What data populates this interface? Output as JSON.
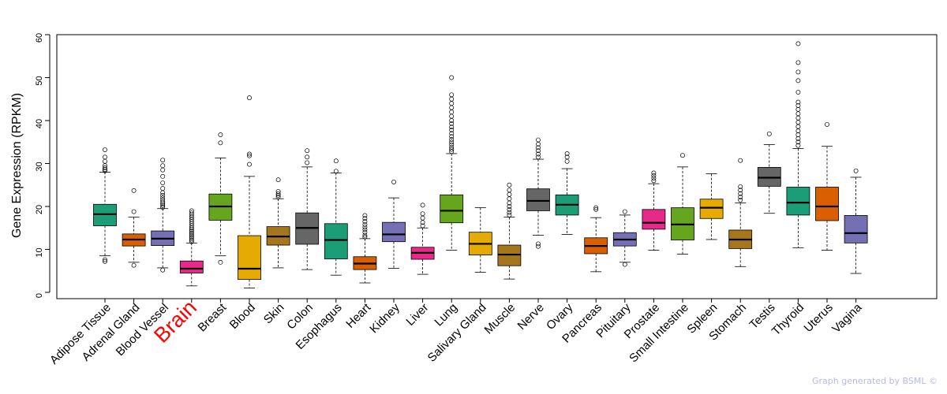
{
  "chart_data": {
    "type": "boxplot",
    "title": "",
    "ylabel": "Gene Expression (RPKM)",
    "xlabel": "",
    "ylim": [
      0,
      60
    ],
    "yticks": [
      0,
      10,
      20,
      30,
      40,
      50,
      60
    ],
    "highlight": "Brain",
    "highlight_color": "#ff0000",
    "tissues": [
      {
        "name": "Adipose Tissue",
        "color": "#1b9e77",
        "whisker_low": 8.5,
        "q1": 15.5,
        "median": 18.2,
        "q3": 20.5,
        "whisker_high": 28.0,
        "outliers": [
          7.2,
          7.6,
          28.3,
          28.6,
          29.0,
          29.5,
          30.5,
          31.5,
          33.2
        ]
      },
      {
        "name": "Adrenal Gland",
        "color": "#d95f02",
        "whisker_low": 7.0,
        "q1": 10.8,
        "median": 12.3,
        "q3": 13.6,
        "whisker_high": 17.5,
        "outliers": [
          6.3,
          18.8,
          23.7
        ]
      },
      {
        "name": "Blood Vessel",
        "color": "#7570b3",
        "whisker_low": 5.7,
        "q1": 10.9,
        "median": 12.5,
        "q3": 14.3,
        "whisker_high": 19.5,
        "outliers": [
          5.2,
          19.8,
          20.2,
          20.6,
          21.0,
          21.5,
          22.0,
          22.6,
          23.2,
          24.2,
          25.5,
          27.0,
          28.5,
          29.5,
          30.8
        ]
      },
      {
        "name": "Brain",
        "color": "#e7298a",
        "whisker_low": 1.5,
        "q1": 4.5,
        "median": 5.5,
        "q3": 7.3,
        "whisker_high": 11.5,
        "outliers": [
          11.8,
          12.2,
          12.6,
          13.0,
          13.4,
          13.8,
          14.2,
          14.6,
          15.0,
          15.5,
          16.0,
          16.5,
          17.0,
          17.5,
          18.0,
          18.5,
          19.0
        ]
      },
      {
        "name": "Breast",
        "color": "#66a61e",
        "whisker_low": 8.5,
        "q1": 16.8,
        "median": 20.0,
        "q3": 22.9,
        "whisker_high": 31.3,
        "outliers": [
          7.0,
          34.8,
          36.7
        ]
      },
      {
        "name": "Blood",
        "color": "#e6ab02",
        "whisker_low": 1.0,
        "q1": 3.0,
        "median": 5.5,
        "q3": 13.2,
        "whisker_high": 27.0,
        "outliers": [
          29.8,
          31.8,
          32.2,
          45.3
        ]
      },
      {
        "name": "Skin",
        "color": "#a6761d",
        "whisker_low": 5.7,
        "q1": 11.0,
        "median": 13.0,
        "q3": 15.3,
        "whisker_high": 21.8,
        "outliers": [
          22.2,
          22.6,
          23.0,
          23.5,
          26.2
        ]
      },
      {
        "name": "Colon",
        "color": "#666666",
        "whisker_low": 5.3,
        "q1": 11.2,
        "median": 15.0,
        "q3": 18.5,
        "whisker_high": 29.2,
        "outliers": [
          30.2,
          31.5,
          33.0
        ]
      },
      {
        "name": "Esophagus",
        "color": "#1b9e77",
        "whisker_low": 4.0,
        "q1": 7.8,
        "median": 12.2,
        "q3": 16.0,
        "whisker_high": 27.8,
        "outliers": [
          28.2,
          30.6
        ]
      },
      {
        "name": "Heart",
        "color": "#d95f02",
        "whisker_low": 2.2,
        "q1": 5.3,
        "median": 6.7,
        "q3": 8.3,
        "whisker_high": 12.5,
        "outliers": [
          12.9,
          13.3,
          14.0,
          14.6,
          15.2,
          15.8,
          16.5,
          17.2,
          17.9
        ]
      },
      {
        "name": "Kidney",
        "color": "#7570b3",
        "whisker_low": 5.6,
        "q1": 11.8,
        "median": 13.5,
        "q3": 16.3,
        "whisker_high": 22.0,
        "outliers": [
          25.7
        ]
      },
      {
        "name": "Liver",
        "color": "#e7298a",
        "whisker_low": 4.2,
        "q1": 7.7,
        "median": 9.2,
        "q3": 10.5,
        "whisker_high": 15.0,
        "outliers": [
          15.5,
          16.3,
          17.3,
          18.3,
          20.3
        ]
      },
      {
        "name": "Lung",
        "color": "#66a61e",
        "whisker_low": 9.8,
        "q1": 16.2,
        "median": 19.0,
        "q3": 22.7,
        "whisker_high": 32.3,
        "outliers": [
          32.8,
          33.3,
          33.8,
          34.4,
          35.0,
          35.6,
          36.3,
          37.0,
          37.8,
          38.5,
          39.3,
          40.0,
          41.0,
          42.0,
          43.0,
          44.0,
          45.0,
          46.0,
          50.0
        ]
      },
      {
        "name": "Salivary Gland",
        "color": "#e6ab02",
        "whisker_low": 4.7,
        "q1": 8.7,
        "median": 11.3,
        "q3": 14.0,
        "whisker_high": 19.7,
        "outliers": []
      },
      {
        "name": "Muscle",
        "color": "#a6761d",
        "whisker_low": 3.1,
        "q1": 6.2,
        "median": 8.8,
        "q3": 11.0,
        "whisker_high": 17.5,
        "outliers": [
          18.0,
          18.6,
          19.3,
          20.0,
          20.8,
          21.8,
          22.8,
          23.8,
          25.0
        ]
      },
      {
        "name": "Nerve",
        "color": "#666666",
        "whisker_low": 13.3,
        "q1": 19.0,
        "median": 21.3,
        "q3": 24.1,
        "whisker_high": 31.0,
        "outliers": [
          10.7,
          11.3,
          31.5,
          32.2,
          33.0,
          33.7,
          34.5,
          35.5
        ]
      },
      {
        "name": "Ovary",
        "color": "#1b9e77",
        "whisker_low": 13.5,
        "q1": 18.0,
        "median": 20.4,
        "q3": 22.7,
        "whisker_high": 28.8,
        "outliers": [
          30.5,
          31.5,
          32.3
        ]
      },
      {
        "name": "Pancreas",
        "color": "#d95f02",
        "whisker_low": 4.8,
        "q1": 9.0,
        "median": 10.8,
        "q3": 12.7,
        "whisker_high": 17.4,
        "outliers": [
          19.3,
          19.7
        ]
      },
      {
        "name": "Pituitary",
        "color": "#7570b3",
        "whisker_low": 7.0,
        "q1": 10.8,
        "median": 12.3,
        "q3": 13.9,
        "whisker_high": 18.0,
        "outliers": [
          6.5,
          18.8
        ]
      },
      {
        "name": "Prostate",
        "color": "#e7298a",
        "whisker_low": 9.8,
        "q1": 14.7,
        "median": 16.2,
        "q3": 19.3,
        "whisker_high": 25.3,
        "outliers": [
          26.0,
          26.6,
          27.2,
          27.8
        ]
      },
      {
        "name": "Small Intestine",
        "color": "#66a61e",
        "whisker_low": 8.9,
        "q1": 12.2,
        "median": 15.8,
        "q3": 19.7,
        "whisker_high": 29.2,
        "outliers": [
          31.9
        ]
      },
      {
        "name": "Spleen",
        "color": "#e6ab02",
        "whisker_low": 12.3,
        "q1": 17.2,
        "median": 19.7,
        "q3": 21.7,
        "whisker_high": 27.6,
        "outliers": []
      },
      {
        "name": "Stomach",
        "color": "#a6761d",
        "whisker_low": 6.0,
        "q1": 10.2,
        "median": 12.3,
        "q3": 14.5,
        "whisker_high": 20.8,
        "outliers": [
          21.5,
          22.2,
          23.0,
          23.8,
          24.6,
          30.7
        ]
      },
      {
        "name": "Testis",
        "color": "#666666",
        "whisker_low": 18.4,
        "q1": 24.7,
        "median": 26.7,
        "q3": 29.1,
        "whisker_high": 34.4,
        "outliers": [
          36.9
        ]
      },
      {
        "name": "Thyroid",
        "color": "#1b9e77",
        "whisker_low": 10.4,
        "q1": 18.0,
        "median": 20.9,
        "q3": 24.5,
        "whisker_high": 33.5,
        "outliers": [
          34.2,
          35.0,
          35.8,
          36.7,
          37.6,
          38.6,
          39.6,
          40.6,
          41.6,
          42.6,
          43.5,
          44.3,
          46.6,
          49.3,
          51.3,
          53.5,
          57.9
        ]
      },
      {
        "name": "Uterus",
        "color": "#d95f02",
        "whisker_low": 9.8,
        "q1": 16.7,
        "median": 20.0,
        "q3": 24.5,
        "whisker_high": 34.0,
        "outliers": [
          39.1
        ]
      },
      {
        "name": "Vagina",
        "color": "#7570b3",
        "whisker_low": 4.4,
        "q1": 11.5,
        "median": 13.8,
        "q3": 17.9,
        "whisker_high": 26.8,
        "outliers": [
          28.3
        ]
      }
    ]
  },
  "footer": {
    "credit": "Graph generated by BSML ©"
  }
}
